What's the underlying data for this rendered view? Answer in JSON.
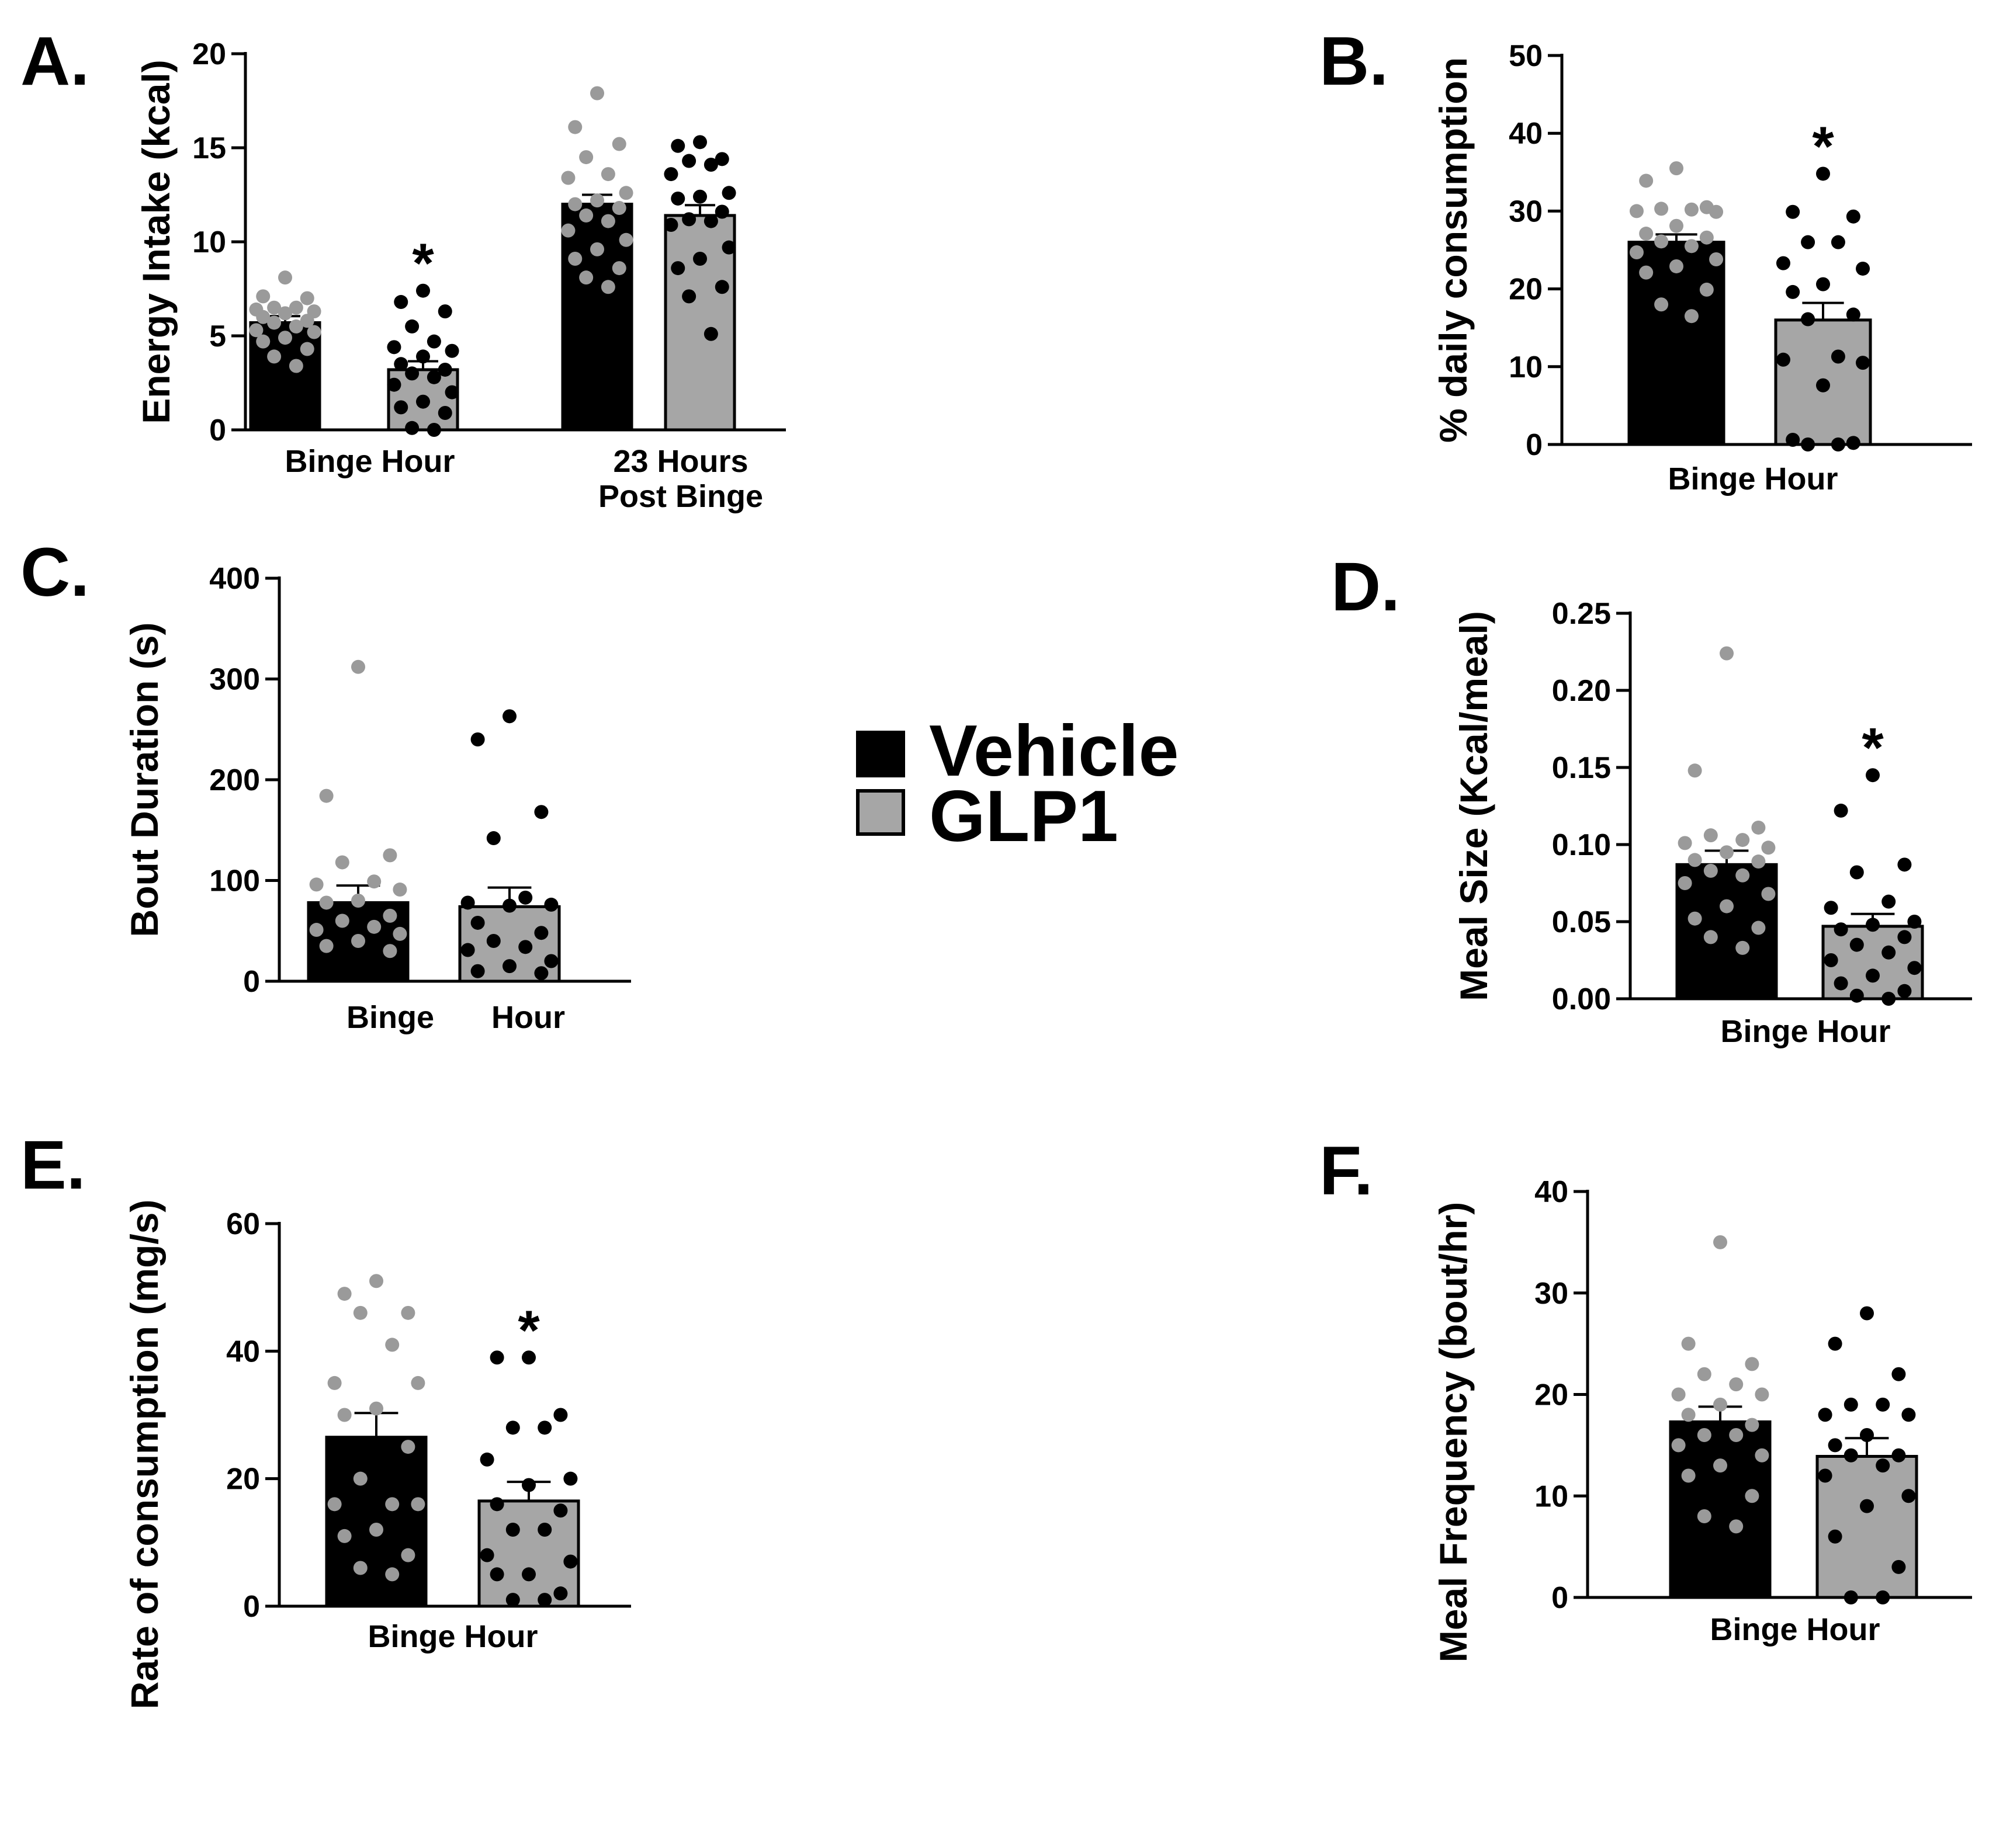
{
  "legend": [
    {
      "label": "Vehicle",
      "color": "#000000"
    },
    {
      "label": "GLP1",
      "color": "#a6a6a6"
    }
  ],
  "colors": {
    "vehicle_fill": "#000000",
    "glp1_fill": "#a6a6a6",
    "vehicle_dots": "#9a9a9a",
    "glp1_dots": "#000000"
  },
  "chart_data": [
    {
      "panel": "A.",
      "type": "bar",
      "ylabel": "Energy Intake  (kcal)",
      "ylim": [
        0,
        20
      ],
      "yticks": [
        0,
        5,
        10,
        15,
        20
      ],
      "categories": [
        [
          "Binge Hour"
        ],
        [
          "23 Hours",
          "Post Binge"
        ]
      ],
      "series": [
        {
          "name": "Vehicle",
          "values": [
            5.7,
            12.0
          ],
          "sem": [
            0.35,
            0.5
          ]
        },
        {
          "name": "GLP1",
          "values": [
            3.2,
            11.4
          ],
          "sem": [
            0.45,
            0.55
          ]
        }
      ],
      "significance": [
        {
          "category": 0,
          "series": 1,
          "mark": "*"
        }
      ],
      "points": [
        [
          [
            8.1,
            7.1,
            7.0,
            6.5,
            6.5,
            6.4,
            6.3,
            6.2,
            6.0,
            5.8,
            5.7,
            5.5,
            5.3,
            5.2,
            4.9,
            4.7,
            4.3,
            3.9,
            3.4
          ],
          [
            7.4,
            6.8,
            6.3,
            5.5,
            4.7,
            4.4,
            4.2,
            3.9,
            3.5,
            3.2,
            3.0,
            2.8,
            2.4,
            2.0,
            1.5,
            1.2,
            0.9,
            0.1,
            0.0
          ]
        ],
        [
          [
            17.9,
            16.1,
            15.2,
            14.5,
            13.6,
            13.4,
            12.6,
            12.2,
            12.0,
            11.8,
            11.4,
            11.1,
            10.6,
            10.1,
            9.6,
            9.1,
            8.6,
            8.1,
            7.6
          ],
          [
            15.3,
            15.1,
            14.4,
            14.3,
            14.1,
            13.6,
            12.6,
            12.4,
            12.3,
            11.6,
            11.2,
            11.1,
            10.9,
            9.7,
            9.1,
            8.6,
            7.6,
            7.1,
            5.1
          ]
        ]
      ]
    },
    {
      "panel": "B.",
      "type": "bar",
      "ylabel": "% daily consumption",
      "ylim": [
        0,
        50
      ],
      "yticks": [
        0,
        10,
        20,
        30,
        40,
        50
      ],
      "categories": [
        [
          "Binge Hour"
        ]
      ],
      "series": [
        {
          "name": "Vehicle",
          "values": [
            26.0
          ],
          "sem": [
            1.0
          ]
        },
        {
          "name": "GLP1",
          "values": [
            16.0
          ],
          "sem": [
            2.2
          ]
        }
      ],
      "significance": [
        {
          "category": 0,
          "series": 1,
          "mark": "*"
        }
      ],
      "points": [
        [
          [
            35.5,
            33.9,
            30.5,
            30.3,
            30.2,
            30.0,
            29.9,
            28.1,
            27.1,
            26.6,
            26.1,
            25.5,
            24.7,
            23.8,
            22.9,
            22.1,
            19.9,
            18.0,
            16.5
          ],
          [
            34.8,
            29.9,
            29.3,
            26.0,
            26.0,
            23.3,
            22.6,
            20.6,
            19.6,
            16.7,
            16.1,
            11.3,
            10.9,
            10.5,
            7.6,
            0.6,
            0.2,
            0.0,
            0.0
          ]
        ]
      ]
    },
    {
      "panel": "C.",
      "type": "bar",
      "ylabel": "Bout Duration  (s)",
      "ylim": [
        0,
        400
      ],
      "yticks": [
        0,
        100,
        200,
        300,
        400
      ],
      "categories": [
        [
          "Binge",
          "Hour"
        ]
      ],
      "category_label_split": true,
      "series": [
        {
          "name": "Vehicle",
          "values": [
            78
          ],
          "sem": [
            17
          ]
        },
        {
          "name": "GLP1",
          "values": [
            74
          ],
          "sem": [
            19
          ]
        }
      ],
      "significance": [],
      "points": [
        [
          [
            312,
            184,
            125,
            118,
            99,
            96,
            91,
            80,
            78,
            65,
            60,
            54,
            51,
            47,
            40,
            35,
            30
          ],
          [
            263,
            240,
            168,
            142,
            83,
            78,
            76,
            75,
            58,
            48,
            40,
            34,
            31,
            20,
            15,
            10,
            8
          ]
        ]
      ]
    },
    {
      "panel": "D.",
      "type": "bar",
      "ylabel": "Meal Size (Kcal/meal)",
      "ylim": [
        0,
        0.25
      ],
      "yticks": [
        "0.00",
        "0.05",
        "0.10",
        "0.15",
        "0.20",
        "0.25"
      ],
      "categories": [
        [
          "Binge Hour"
        ]
      ],
      "series": [
        {
          "name": "Vehicle",
          "values": [
            0.087
          ],
          "sem": [
            0.009
          ]
        },
        {
          "name": "GLP1",
          "values": [
            0.047
          ],
          "sem": [
            0.008
          ]
        }
      ],
      "significance": [
        {
          "category": 0,
          "series": 1,
          "mark": "*"
        }
      ],
      "points": [
        [
          [
            0.224,
            0.148,
            0.111,
            0.106,
            0.103,
            0.101,
            0.098,
            0.095,
            0.09,
            0.089,
            0.083,
            0.08,
            0.075,
            0.068,
            0.06,
            0.052,
            0.046,
            0.04,
            0.033
          ],
          [
            0.145,
            0.122,
            0.087,
            0.082,
            0.063,
            0.059,
            0.05,
            0.048,
            0.045,
            0.04,
            0.035,
            0.03,
            0.025,
            0.02,
            0.015,
            0.01,
            0.005,
            0.002,
            0.0
          ]
        ]
      ]
    },
    {
      "panel": "E.",
      "type": "bar",
      "ylabel": "Rate of consumption  (mg/s)",
      "ylim": [
        0,
        60
      ],
      "yticks": [
        0,
        20,
        40,
        60
      ],
      "categories": [
        [
          "Binge Hour"
        ]
      ],
      "series": [
        {
          "name": "Vehicle",
          "values": [
            26.5
          ],
          "sem": [
            3.8
          ]
        },
        {
          "name": "GLP1",
          "values": [
            16.5
          ],
          "sem": [
            3.0
          ]
        }
      ],
      "significance": [
        {
          "category": 0,
          "series": 1,
          "mark": "*"
        }
      ],
      "points": [
        [
          [
            51,
            49,
            46,
            46,
            41,
            35,
            35,
            31,
            30,
            25,
            20,
            16,
            16,
            16,
            12,
            11,
            8,
            6,
            5
          ],
          [
            39,
            39,
            30,
            28,
            28,
            23,
            20,
            19,
            16,
            15,
            12,
            12,
            8,
            7,
            5,
            5,
            2,
            1,
            1
          ]
        ]
      ]
    },
    {
      "panel": "F.",
      "type": "bar",
      "ylabel": "Meal Frequency (bout/hr)",
      "ylim": [
        0,
        40
      ],
      "yticks": [
        0,
        10,
        20,
        30,
        40
      ],
      "categories": [
        [
          "Binge Hour"
        ]
      ],
      "series": [
        {
          "name": "Vehicle",
          "values": [
            17.3
          ],
          "sem": [
            1.5
          ]
        },
        {
          "name": "GLP1",
          "values": [
            13.9
          ],
          "sem": [
            1.8
          ]
        }
      ],
      "significance": [],
      "points": [
        [
          [
            35,
            25,
            23,
            22,
            21,
            20,
            20,
            19,
            18,
            17,
            16,
            16,
            15,
            14,
            13,
            12,
            10,
            8,
            7
          ],
          [
            28,
            25,
            22,
            19,
            19,
            18,
            18,
            16,
            15,
            14,
            14,
            13,
            12,
            10,
            9,
            6,
            3,
            0,
            0
          ]
        ]
      ]
    }
  ]
}
